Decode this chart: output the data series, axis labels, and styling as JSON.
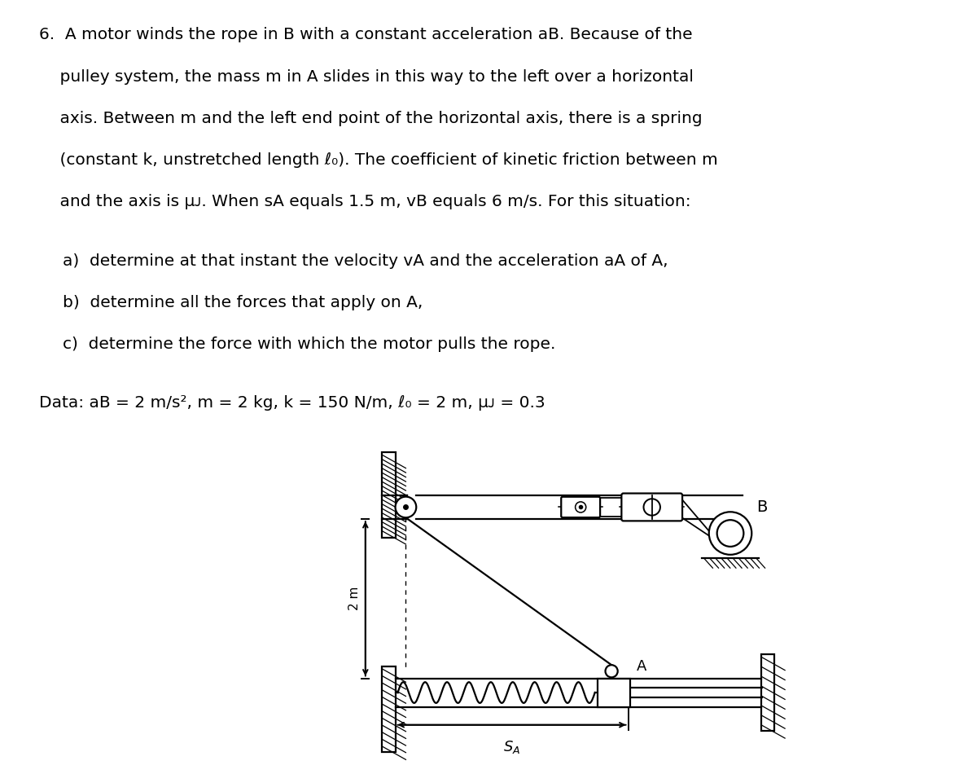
{
  "bg_color": "#ffffff",
  "line_color": "#000000",
  "text_lines": [
    "6.  A motor winds the rope in B with a constant acceleration aB. Because of the",
    "    pulley system, the mass m in A slides in this way to the left over a horizontal",
    "    axis. Between m and the left end point of the horizontal axis, there is a spring",
    "    (constant k, unstretched length ℓ₀). The coefficient of kinetic friction between m",
    "    and the axis is μᴊ. When sA equals 1.5 m, vB equals 6 m/s. For this situation:"
  ],
  "item_lines": [
    "a)  determine at that instant the velocity vA and the acceleration aA of A,",
    "b)  determine all the forces that apply on A,",
    "c)  determine the force with which the motor pulls the rope."
  ],
  "data_line": "Data: aB = 2 m/s², m = 2 kg, k = 150 N/m, ℓ₀ = 2 m, μᴊ = 0.3",
  "font_size": 14.5,
  "font_family": "DejaVu Sans"
}
